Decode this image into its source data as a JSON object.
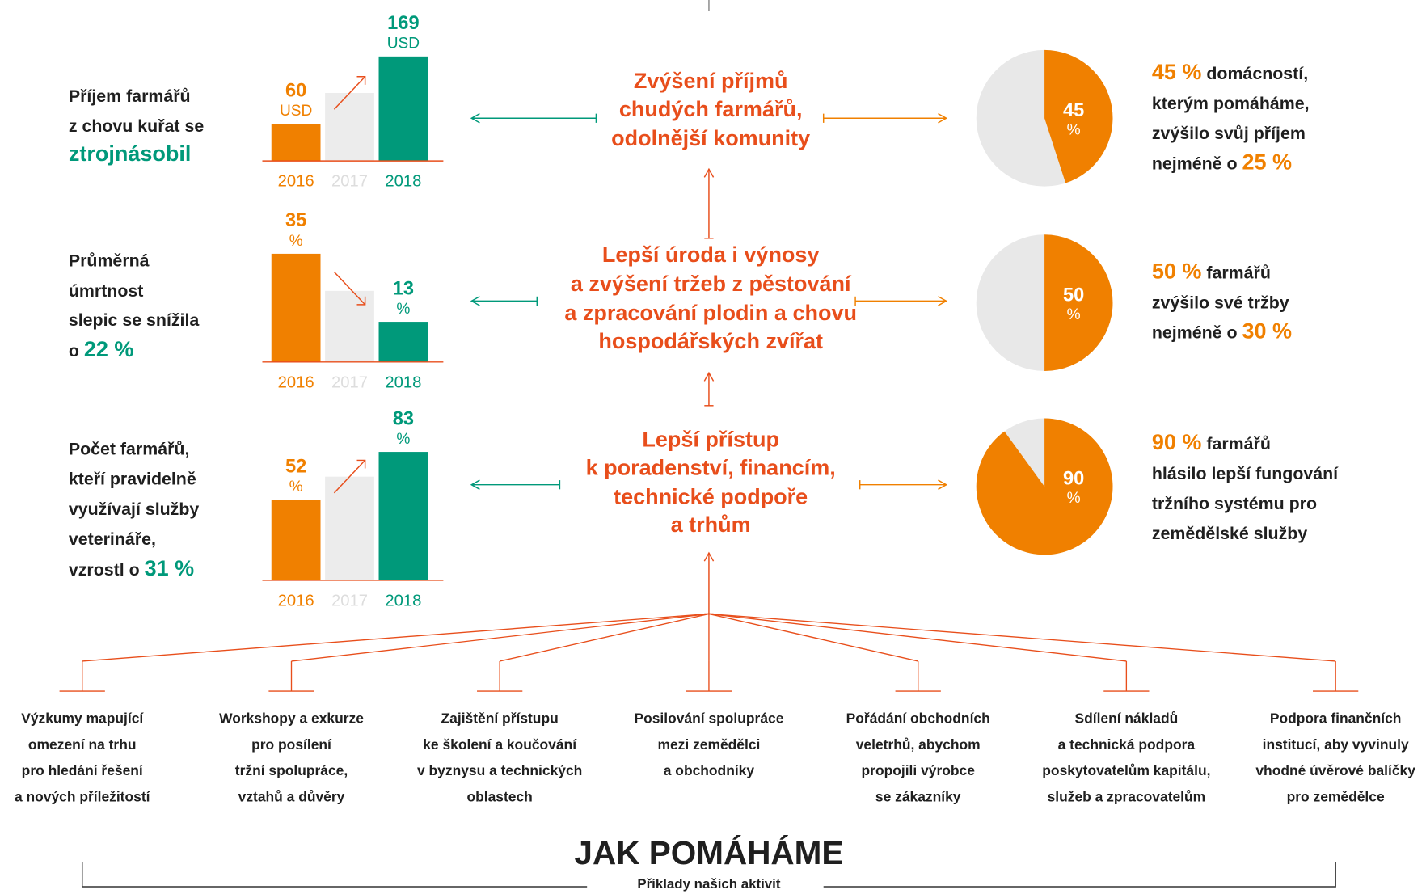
{
  "metrics": [
    {
      "lines": [
        [
          "Příjem farmářů"
        ],
        [
          "z chovu kuřat se"
        ],
        [
          {
            "em": "ztrojnásobil"
          }
        ]
      ],
      "chart": {
        "categories": [
          "2016",
          "2017",
          "2018"
        ],
        "values": [
          60,
          110,
          169
        ],
        "value_labels": [
          "60",
          null,
          "169"
        ],
        "unit": "USD",
        "ylim": [
          0,
          250
        ],
        "colors": [
          "#f08000",
          "#ececec",
          "#00997a"
        ],
        "label_colors": [
          "#f08000",
          "#dddddd",
          "#00997a"
        ]
      }
    },
    {
      "lines": [
        [
          "Průměrná"
        ],
        [
          "úmrtnost"
        ],
        [
          "slepic se snížila"
        ],
        [
          "o ",
          {
            "em": "22 %"
          }
        ]
      ],
      "chart": {
        "categories": [
          "2016",
          "2017",
          "2018"
        ],
        "values": [
          35,
          23,
          13
        ],
        "value_labels": [
          "35",
          null,
          "13"
        ],
        "unit": "%",
        "ylim": [
          0,
          50
        ],
        "colors": [
          "#f08000",
          "#ececec",
          "#00997a"
        ],
        "label_colors": [
          "#f08000",
          "#dddddd",
          "#00997a"
        ]
      }
    },
    {
      "lines": [
        [
          "Počet farmářů,"
        ],
        [
          "kteří pravidelně"
        ],
        [
          "využívají služby"
        ],
        [
          "veterináře,"
        ],
        [
          "vzrostl o ",
          {
            "em": "31 %"
          }
        ]
      ],
      "chart": {
        "categories": [
          "2016",
          "2017",
          "2018"
        ],
        "values": [
          52,
          67,
          83
        ],
        "value_labels": [
          "52",
          null,
          "83"
        ],
        "unit": "%",
        "ylim": [
          0,
          100
        ],
        "colors": [
          "#f08000",
          "#ececec",
          "#00997a"
        ],
        "label_colors": [
          "#f08000",
          "#dddddd",
          "#00997a"
        ]
      }
    }
  ],
  "outcomes": [
    [
      "Zvýšení příjmů",
      "chudých farmářů,",
      "odolnější komunity"
    ],
    [
      "Lepší úroda i výnosy",
      "a zvýšení tržeb z pěstování",
      "a zpracování plodin a chovu",
      "hospodářských zvířat"
    ],
    [
      "Lepší přístup",
      "k poradenství, financím,",
      "technické podpoře",
      "a trhům"
    ]
  ],
  "results": [
    {
      "pie": {
        "value": 45,
        "unit": "%",
        "colors": [
          "#f08000",
          "#e8e8e8"
        ]
      },
      "lines": [
        [
          {
            "em": "45 %"
          },
          " domácností,"
        ],
        [
          "kterým pomáháme,"
        ],
        [
          "zvýšilo svůj příjem"
        ],
        [
          "nejméně o ",
          {
            "em": "25 %"
          }
        ]
      ]
    },
    {
      "pie": {
        "value": 50,
        "unit": "%",
        "colors": [
          "#f08000",
          "#e8e8e8"
        ]
      },
      "lines": [
        [
          {
            "em": "50 %"
          },
          " farmářů"
        ],
        [
          "zvýšilo své tržby"
        ],
        [
          "nejméně o ",
          {
            "em": "30 %"
          }
        ]
      ]
    },
    {
      "pie": {
        "value": 90,
        "unit": "%",
        "colors": [
          "#f08000",
          "#e8e8e8"
        ]
      },
      "lines": [
        [
          {
            "em": "90 %"
          },
          " farmářů"
        ],
        [
          "hlásilo lepší fungování"
        ],
        [
          "tržního systému pro"
        ],
        [
          "zemědělské služby"
        ]
      ]
    }
  ],
  "activities": [
    [
      "Výzkumy mapující",
      "omezení na trhu",
      "pro hledání řešení",
      "a nových příležitostí"
    ],
    [
      "Workshopy a exkurze",
      "pro posílení",
      "tržní spolupráce,",
      "vztahů a důvěry"
    ],
    [
      "Zajištění přístupu",
      "ke školení a koučování",
      "v byznysu a technických",
      "oblastech"
    ],
    [
      "Posilování spolupráce",
      "mezi zemědělci",
      "a obchodníky"
    ],
    [
      "Pořádání obchodních",
      "veletrhů, abychom",
      "propojili výrobce",
      "se zákazníky"
    ],
    [
      "Sdílení nákladů",
      "a technická podpora",
      "poskytovatelům kapitálu,",
      "služeb a zpracovatelům"
    ],
    [
      "Podpora finančních",
      "institucí, aby vyvinuly",
      "vhodné úvěrové balíčky",
      "pro zemědělce"
    ]
  ],
  "footer": {
    "title": "JAK POMÁHÁME",
    "subtitle": "Příklady našich aktivit"
  }
}
